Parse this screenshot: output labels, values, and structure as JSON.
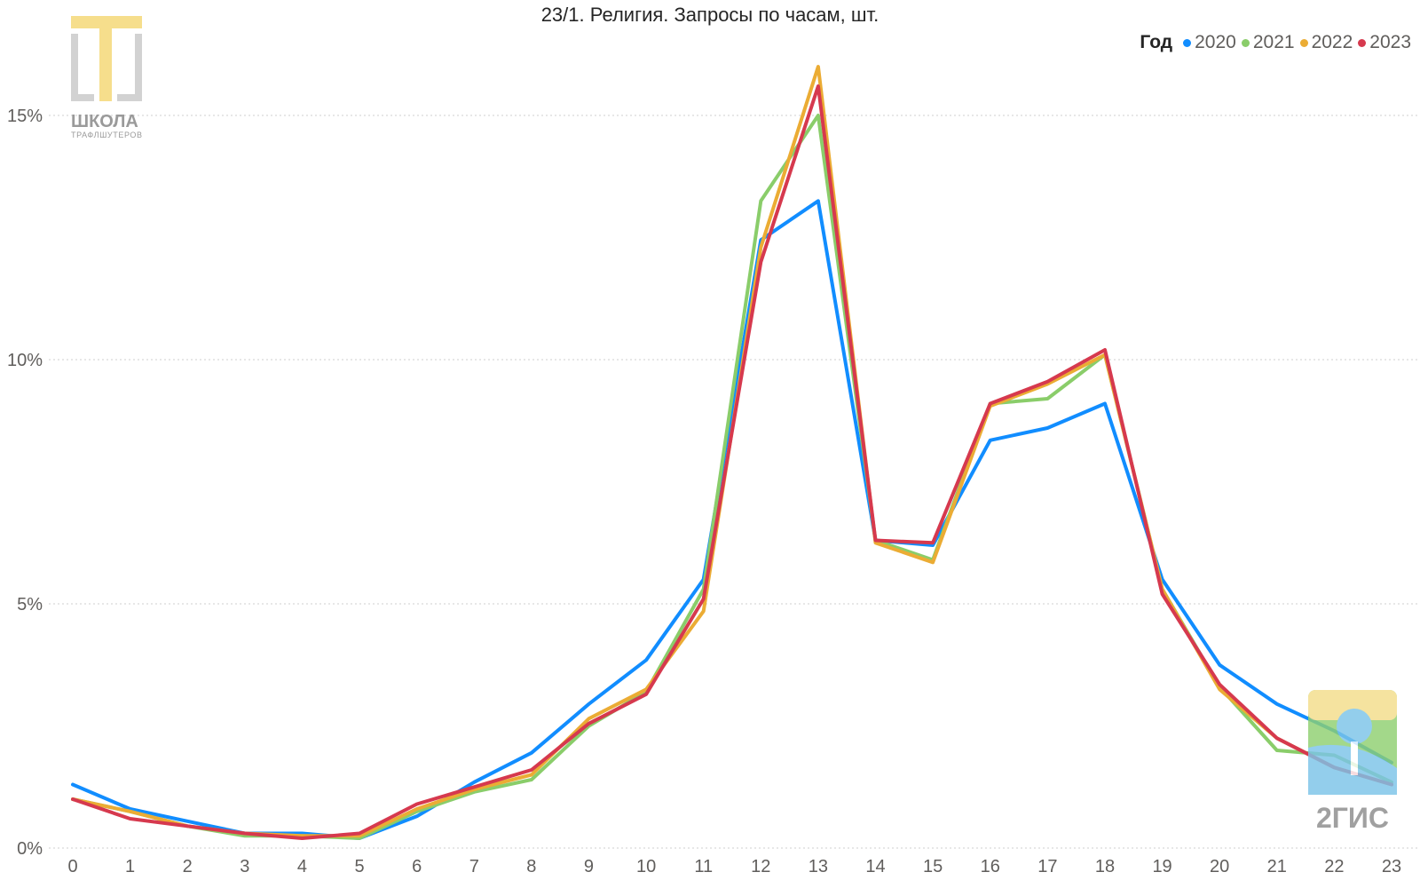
{
  "chart_data": {
    "type": "line",
    "title": "23/1. Религия. Запросы по часам, шт.",
    "legend_title": "Год",
    "legend_position": "top-right",
    "grid": true,
    "xlabel": "",
    "ylabel": "",
    "ylim": [
      0,
      16.5
    ],
    "y_ticks": [
      0,
      5,
      10,
      15
    ],
    "y_tick_labels": [
      "0%",
      "5%",
      "10%",
      "15%"
    ],
    "categories": [
      "0",
      "1",
      "2",
      "3",
      "4",
      "5",
      "6",
      "7",
      "8",
      "9",
      "10",
      "11",
      "12",
      "13",
      "14",
      "15",
      "16",
      "17",
      "18",
      "19",
      "20",
      "21",
      "22",
      "23"
    ],
    "series": [
      {
        "name": "2020",
        "color": "#118DFF",
        "values": [
          1.3,
          0.8,
          0.55,
          0.3,
          0.3,
          0.2,
          0.65,
          1.35,
          1.95,
          2.95,
          3.85,
          5.5,
          12.45,
          13.25,
          6.3,
          6.2,
          8.35,
          8.6,
          9.1,
          5.5,
          3.75,
          2.95,
          2.4,
          1.75
        ]
      },
      {
        "name": "2021",
        "color": "#8ACD6A",
        "values": [
          1.0,
          0.75,
          0.45,
          0.25,
          0.25,
          0.2,
          0.75,
          1.15,
          1.4,
          2.5,
          3.2,
          5.3,
          13.25,
          15.0,
          6.3,
          5.9,
          9.1,
          9.2,
          10.1,
          5.3,
          3.3,
          2.0,
          1.9,
          1.35
        ]
      },
      {
        "name": "2022",
        "color": "#EBAC34",
        "values": [
          1.0,
          0.75,
          0.45,
          0.3,
          0.25,
          0.25,
          0.8,
          1.2,
          1.5,
          2.65,
          3.25,
          4.85,
          12.3,
          16.0,
          6.25,
          5.85,
          9.05,
          9.5,
          10.1,
          5.3,
          3.25,
          2.25,
          1.65,
          1.3
        ]
      },
      {
        "name": "2023",
        "color": "#D6394E",
        "values": [
          1.0,
          0.6,
          0.45,
          0.3,
          0.2,
          0.3,
          0.9,
          1.25,
          1.6,
          2.55,
          3.15,
          5.1,
          12.0,
          15.6,
          6.3,
          6.25,
          9.1,
          9.55,
          10.2,
          5.2,
          3.35,
          2.25,
          1.65,
          1.3
        ]
      }
    ]
  },
  "logos": {
    "school": {
      "name": "ШКОЛА",
      "sub": "ТРАФЛШУТЕРОВ",
      "icon": "tt-logo-icon"
    },
    "gis": {
      "name": "2ГИС",
      "icon": "2gis-logo-icon"
    }
  }
}
